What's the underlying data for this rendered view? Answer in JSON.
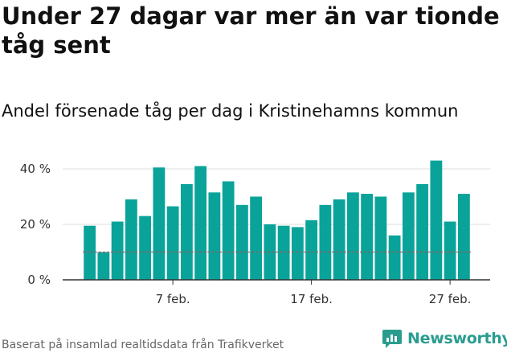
{
  "title": "Under 27 dagar var mer än var tionde tåg sent",
  "subtitle": "Andel försenade tåg per dag i Kristinehamns kommun",
  "footer": "Baserat på insamlad realtidsdata från Trafikverket",
  "brand": {
    "name": "Newsworthy",
    "icon": "newsworthy-logo-icon"
  },
  "colors": {
    "bar": "#0aa39a",
    "reference_line": "#9b5a5a",
    "grid": "#dddddd",
    "brand": "#2a9d8f"
  },
  "chart_data": {
    "type": "bar",
    "categories": [
      "1 feb.",
      "2 feb.",
      "3 feb.",
      "4 feb.",
      "5 feb.",
      "6 feb.",
      "7 feb.",
      "8 feb.",
      "9 feb.",
      "10 feb.",
      "11 feb.",
      "12 feb.",
      "13 feb.",
      "14 feb.",
      "15 feb.",
      "16 feb.",
      "17 feb.",
      "18 feb.",
      "19 feb.",
      "20 feb.",
      "21 feb.",
      "22 feb.",
      "23 feb.",
      "24 feb.",
      "25 feb.",
      "26 feb.",
      "27 feb.",
      "28 feb."
    ],
    "values": [
      19.5,
      10,
      21,
      29,
      23,
      40.5,
      26.5,
      34.5,
      41,
      31.5,
      35.5,
      27,
      30,
      20,
      19.5,
      19,
      21.5,
      27,
      29,
      31.5,
      31,
      30,
      16,
      31.5,
      34.5,
      43,
      21,
      31
    ],
    "reference_value": 10,
    "x_tick_labels": [
      "7 feb.",
      "17 feb.",
      "27 feb."
    ],
    "y_ticks": [
      0,
      20,
      40
    ],
    "y_tick_labels": [
      "0 %",
      "20 %",
      "40 %"
    ],
    "ylim": [
      0,
      45
    ],
    "grid": true
  }
}
